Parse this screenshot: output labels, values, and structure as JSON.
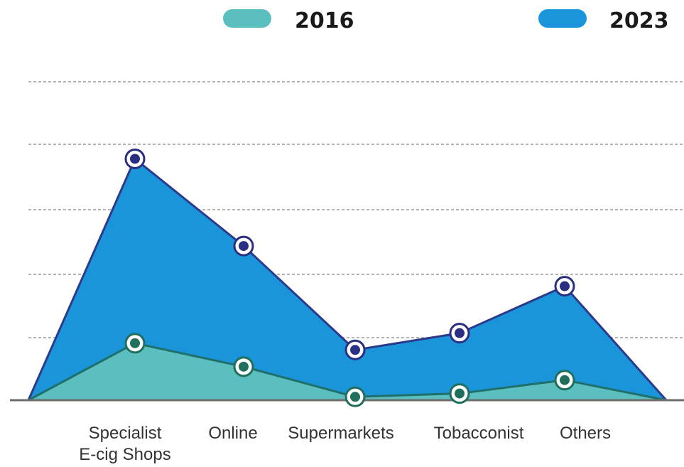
{
  "chart_data": {
    "type": "area",
    "categories": [
      "Specialist\nE-cig Shops",
      "Online",
      "Supermarkets",
      "Tobacconist",
      "Others"
    ],
    "series": [
      {
        "name": "2016",
        "values": [
          1.7,
          1.0,
          0.1,
          0.2,
          0.6
        ],
        "color": "#5bbfbf",
        "marker": "#1f6f5c"
      },
      {
        "name": "2023",
        "values": [
          7.2,
          4.6,
          1.5,
          2.0,
          3.4
        ],
        "color": "#1a95da",
        "marker": "#2b2f82"
      }
    ],
    "ylim": [
      0,
      9.5
    ],
    "grid": true,
    "legend": "top",
    "line_color": "#2b3a8c"
  }
}
